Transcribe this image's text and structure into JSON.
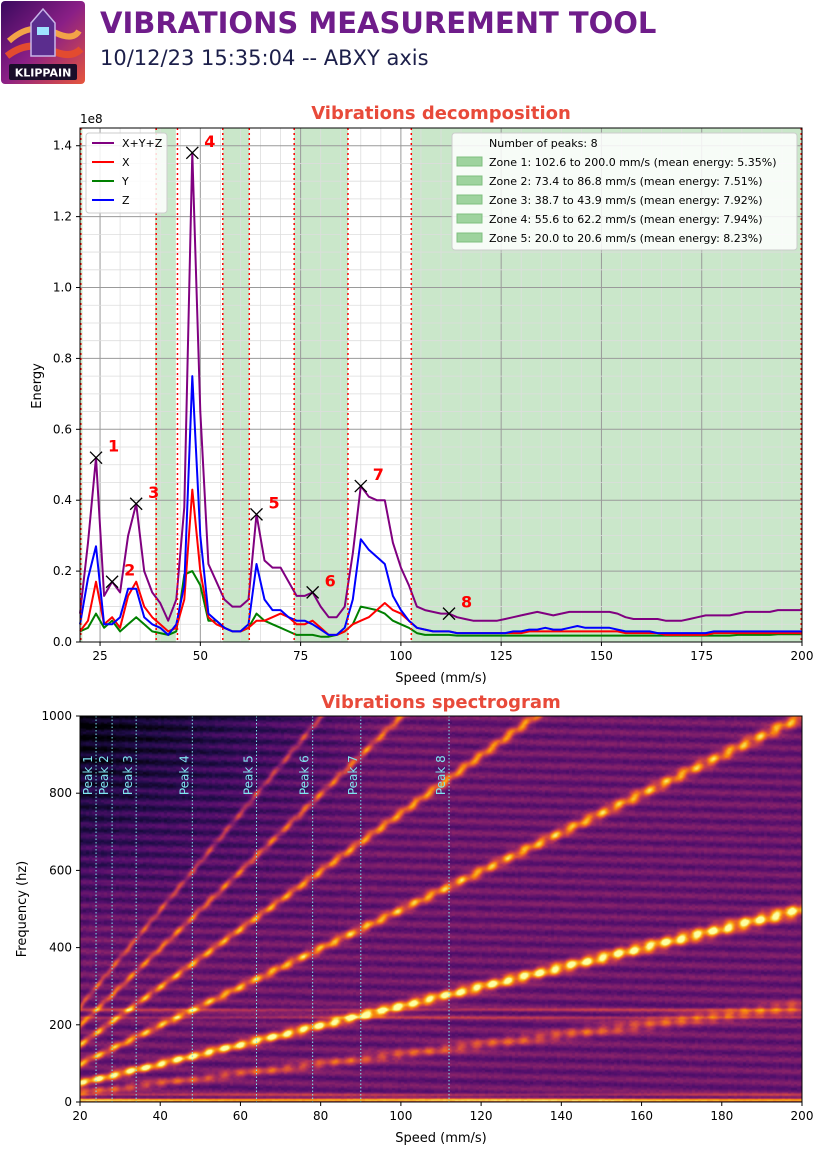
{
  "header": {
    "logo_text": "KLIPPAIN",
    "title": "VIBRATIONS MEASUREMENT TOOL",
    "subtitle": "10/12/23 15:35:04 -- ABXY axis"
  },
  "colors": {
    "title": "#6f1c8a",
    "subtitle": "#1c1f4a",
    "panel_title": "#e84a3a",
    "sum": "#800080",
    "x": "#ff0000",
    "y": "#008000",
    "z": "#0000ff",
    "peak_line": "#ff0000",
    "zone_fill": "#9ed39e",
    "spectro_peak": "#7fe6f0"
  },
  "chart_data": [
    {
      "type": "line",
      "title": "Vibrations decomposition",
      "xlabel": "Speed (mm/s)",
      "ylabel": "Energy",
      "y_multiplier": "1e8",
      "xlim": [
        20,
        200
      ],
      "ylim": [
        0,
        1.45
      ],
      "xticks": [
        25,
        50,
        75,
        100,
        125,
        150,
        175,
        200
      ],
      "yticks": [
        0.0,
        0.2,
        0.4,
        0.6,
        0.8,
        1.0,
        1.2,
        1.4
      ],
      "tick_labels_y": [
        "0.0",
        "0.2",
        "0.4",
        "0.6",
        "0.8",
        "1.0",
        "1.2",
        "1.4"
      ],
      "grid": true,
      "legend_position": "top-left",
      "x": [
        20,
        22,
        24,
        26,
        28,
        30,
        32,
        34,
        36,
        38,
        40,
        42,
        44,
        46,
        48,
        50,
        52,
        54,
        56,
        58,
        60,
        62,
        64,
        66,
        68,
        70,
        72,
        74,
        76,
        78,
        80,
        82,
        84,
        86,
        88,
        90,
        92,
        94,
        96,
        98,
        100,
        102,
        104,
        106,
        108,
        110,
        112,
        114,
        116,
        118,
        120,
        122,
        124,
        126,
        128,
        130,
        132,
        134,
        136,
        138,
        140,
        142,
        144,
        146,
        148,
        150,
        152,
        154,
        156,
        158,
        160,
        162,
        164,
        166,
        168,
        170,
        172,
        174,
        176,
        178,
        180,
        182,
        184,
        186,
        188,
        190,
        192,
        194,
        196,
        198,
        200
      ],
      "series": [
        {
          "name": "X+Y+Z",
          "color": "#800080",
          "values": [
            0.08,
            0.28,
            0.52,
            0.13,
            0.17,
            0.14,
            0.3,
            0.39,
            0.2,
            0.14,
            0.11,
            0.06,
            0.12,
            0.38,
            1.38,
            0.65,
            0.22,
            0.17,
            0.12,
            0.1,
            0.1,
            0.12,
            0.36,
            0.23,
            0.21,
            0.21,
            0.17,
            0.13,
            0.13,
            0.14,
            0.1,
            0.07,
            0.07,
            0.1,
            0.25,
            0.44,
            0.41,
            0.4,
            0.4,
            0.28,
            0.21,
            0.16,
            0.1,
            0.09,
            0.085,
            0.08,
            0.08,
            0.07,
            0.065,
            0.06,
            0.06,
            0.06,
            0.06,
            0.065,
            0.07,
            0.075,
            0.08,
            0.085,
            0.08,
            0.075,
            0.08,
            0.085,
            0.085,
            0.085,
            0.085,
            0.085,
            0.085,
            0.08,
            0.07,
            0.065,
            0.065,
            0.065,
            0.065,
            0.06,
            0.06,
            0.06,
            0.065,
            0.07,
            0.075,
            0.075,
            0.075,
            0.075,
            0.08,
            0.085,
            0.085,
            0.085,
            0.085,
            0.09,
            0.09,
            0.09,
            0.09
          ]
        },
        {
          "name": "X",
          "color": "#ff0000",
          "values": [
            0.03,
            0.06,
            0.17,
            0.05,
            0.07,
            0.04,
            0.13,
            0.17,
            0.1,
            0.07,
            0.05,
            0.03,
            0.04,
            0.12,
            0.43,
            0.2,
            0.07,
            0.05,
            0.04,
            0.03,
            0.03,
            0.04,
            0.06,
            0.06,
            0.07,
            0.08,
            0.07,
            0.05,
            0.05,
            0.06,
            0.04,
            0.02,
            0.02,
            0.03,
            0.05,
            0.06,
            0.07,
            0.09,
            0.11,
            0.09,
            0.08,
            0.06,
            0.04,
            0.035,
            0.03,
            0.03,
            0.03,
            0.025,
            0.025,
            0.025,
            0.025,
            0.025,
            0.025,
            0.025,
            0.025,
            0.025,
            0.03,
            0.03,
            0.03,
            0.03,
            0.03,
            0.03,
            0.03,
            0.03,
            0.03,
            0.03,
            0.03,
            0.03,
            0.025,
            0.025,
            0.025,
            0.025,
            0.025,
            0.02,
            0.02,
            0.02,
            0.02,
            0.02,
            0.02,
            0.025,
            0.025,
            0.025,
            0.025,
            0.025,
            0.025,
            0.025,
            0.025,
            0.025,
            0.025,
            0.025,
            0.025
          ]
        },
        {
          "name": "Y",
          "color": "#008000",
          "values": [
            0.03,
            0.04,
            0.08,
            0.04,
            0.06,
            0.03,
            0.05,
            0.07,
            0.05,
            0.03,
            0.025,
            0.02,
            0.03,
            0.19,
            0.2,
            0.16,
            0.06,
            0.06,
            0.04,
            0.03,
            0.03,
            0.04,
            0.08,
            0.06,
            0.05,
            0.04,
            0.03,
            0.02,
            0.02,
            0.02,
            0.015,
            0.015,
            0.02,
            0.03,
            0.05,
            0.1,
            0.095,
            0.09,
            0.08,
            0.06,
            0.05,
            0.04,
            0.025,
            0.02,
            0.02,
            0.02,
            0.02,
            0.018,
            0.018,
            0.018,
            0.018,
            0.018,
            0.018,
            0.018,
            0.018,
            0.018,
            0.018,
            0.018,
            0.018,
            0.018,
            0.018,
            0.018,
            0.018,
            0.018,
            0.018,
            0.018,
            0.018,
            0.018,
            0.018,
            0.018,
            0.018,
            0.018,
            0.018,
            0.018,
            0.018,
            0.018,
            0.018,
            0.018,
            0.018,
            0.018,
            0.018,
            0.018,
            0.02,
            0.02,
            0.02,
            0.02,
            0.02,
            0.022,
            0.022,
            0.022,
            0.022
          ]
        },
        {
          "name": "Z",
          "color": "#0000ff",
          "values": [
            0.05,
            0.18,
            0.27,
            0.05,
            0.05,
            0.07,
            0.15,
            0.15,
            0.07,
            0.05,
            0.04,
            0.02,
            0.05,
            0.16,
            0.75,
            0.3,
            0.08,
            0.06,
            0.04,
            0.03,
            0.03,
            0.05,
            0.22,
            0.12,
            0.09,
            0.09,
            0.07,
            0.06,
            0.06,
            0.05,
            0.035,
            0.02,
            0.02,
            0.04,
            0.12,
            0.29,
            0.26,
            0.24,
            0.22,
            0.13,
            0.09,
            0.06,
            0.04,
            0.035,
            0.03,
            0.03,
            0.03,
            0.025,
            0.025,
            0.025,
            0.025,
            0.025,
            0.025,
            0.025,
            0.03,
            0.03,
            0.035,
            0.035,
            0.04,
            0.035,
            0.035,
            0.04,
            0.045,
            0.04,
            0.04,
            0.04,
            0.04,
            0.035,
            0.03,
            0.03,
            0.03,
            0.03,
            0.025,
            0.025,
            0.025,
            0.025,
            0.025,
            0.025,
            0.025,
            0.03,
            0.03,
            0.03,
            0.03,
            0.03,
            0.03,
            0.03,
            0.03,
            0.03,
            0.03,
            0.03,
            0.03
          ]
        }
      ],
      "peaks": [
        {
          "label": "1",
          "x": 24,
          "y": 0.52
        },
        {
          "label": "2",
          "x": 28,
          "y": 0.17
        },
        {
          "label": "3",
          "x": 34,
          "y": 0.39
        },
        {
          "label": "4",
          "x": 48,
          "y": 1.38
        },
        {
          "label": "5",
          "x": 64,
          "y": 0.36
        },
        {
          "label": "6",
          "x": 78,
          "y": 0.14
        },
        {
          "label": "7",
          "x": 90,
          "y": 0.44
        },
        {
          "label": "8",
          "x": 112,
          "y": 0.08
        }
      ],
      "peak_lines_x": [
        20.2,
        39,
        44.3,
        55.6,
        62.2,
        73.4,
        86.8,
        102.6,
        199.8
      ],
      "zones": [
        {
          "from": 102.6,
          "to": 200.0
        },
        {
          "from": 73.4,
          "to": 86.8
        },
        {
          "from": 38.7,
          "to": 43.9
        },
        {
          "from": 55.6,
          "to": 62.2
        },
        {
          "from": 20.0,
          "to": 20.6
        }
      ],
      "legend_right": {
        "header": "Number of peaks: 8",
        "items": [
          "Zone 1: 102.6 to 200.0 mm/s (mean energy: 5.35%)",
          "Zone 2: 73.4 to 86.8 mm/s (mean energy: 7.51%)",
          "Zone 3: 38.7 to 43.9 mm/s (mean energy: 7.92%)",
          "Zone 4: 55.6 to 62.2 mm/s (mean energy: 7.94%)",
          "Zone 5: 20.0 to 20.6 mm/s (mean energy: 8.23%)"
        ]
      }
    },
    {
      "type": "heatmap",
      "title": "Vibrations spectrogram",
      "xlabel": "Speed (mm/s)",
      "ylabel": "Frequency (hz)",
      "xlim": [
        20,
        200
      ],
      "ylim": [
        0,
        1000
      ],
      "xticks": [
        20,
        40,
        60,
        80,
        100,
        120,
        140,
        160,
        180,
        200
      ],
      "yticks": [
        0,
        200,
        400,
        600,
        800,
        1000
      ],
      "colormap": "inferno",
      "bright_bands": [
        {
          "slope": 2.5,
          "intensity": 0.85
        },
        {
          "slope": 5.0,
          "intensity": 0.6
        },
        {
          "slope": 7.5,
          "intensity": 0.55
        },
        {
          "slope": 10.0,
          "intensity": 0.45
        },
        {
          "slope": 12.5,
          "intensity": 0.35
        },
        {
          "slope": 1.25,
          "intensity": 0.35
        }
      ],
      "horizontal_bands_hz": [
        220,
        240,
        20,
        6
      ],
      "peak_markers": [
        {
          "label": "Peak 1",
          "x": 24
        },
        {
          "label": "Peak 2",
          "x": 28
        },
        {
          "label": "Peak 3",
          "x": 34
        },
        {
          "label": "Peak 4",
          "x": 48
        },
        {
          "label": "Peak 5",
          "x": 64
        },
        {
          "label": "Peak 6",
          "x": 78
        },
        {
          "label": "Peak 7",
          "x": 90
        },
        {
          "label": "Peak 8",
          "x": 112
        }
      ]
    }
  ]
}
